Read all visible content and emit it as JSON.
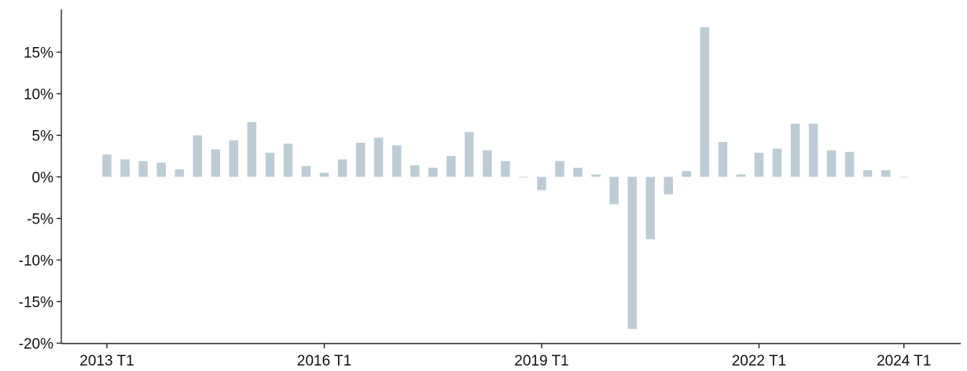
{
  "chart_data": {
    "type": "bar",
    "title": "",
    "xlabel": "",
    "ylabel": "",
    "y_unit": "%",
    "ylim": [
      -20,
      20
    ],
    "y_ticks": [
      -20,
      -15,
      -10,
      -5,
      0,
      5,
      10,
      15
    ],
    "y_tick_labels": [
      "-20%",
      "-15%",
      "-10%",
      "-5%",
      "0%",
      "5%",
      "10%",
      "15%"
    ],
    "x_tick_labels": [
      {
        "label": "2013 T1",
        "category": "2013 T1"
      },
      {
        "label": "2016 T1",
        "category": "2016 T1"
      },
      {
        "label": "2019 T1",
        "category": "2019 T1"
      },
      {
        "label": "2022 T1",
        "category": "2022 T1"
      },
      {
        "label": "2024 T1",
        "category": "2024 T1"
      }
    ],
    "bar_color": "#bdccd4",
    "grid": false,
    "legend": "none",
    "categories": [
      "2013 T1",
      "2013 T2",
      "2013 T3",
      "2013 T4",
      "2014 T1",
      "2014 T2",
      "2014 T3",
      "2014 T4",
      "2015 T1",
      "2015 T2",
      "2015 T3",
      "2015 T4",
      "2016 T1",
      "2016 T2",
      "2016 T3",
      "2016 T4",
      "2017 T1",
      "2017 T2",
      "2017 T3",
      "2017 T4",
      "2018 T1",
      "2018 T2",
      "2018 T3",
      "2018 T4",
      "2019 T1",
      "2019 T2",
      "2019 T3",
      "2019 T4",
      "2020 T1",
      "2020 T2",
      "2020 T3",
      "2020 T4",
      "2021 T1",
      "2021 T2",
      "2021 T3",
      "2021 T4",
      "2022 T1",
      "2022 T2",
      "2022 T3",
      "2022 T4",
      "2023 T1",
      "2023 T2",
      "2023 T3",
      "2023 T4",
      "2024 T1"
    ],
    "values": [
      2.7,
      2.1,
      1.9,
      1.7,
      0.9,
      5.0,
      3.3,
      4.4,
      6.6,
      2.9,
      4.0,
      1.3,
      0.5,
      2.1,
      4.1,
      4.7,
      3.8,
      1.4,
      1.1,
      2.5,
      5.4,
      3.2,
      1.9,
      0.0,
      -1.6,
      1.9,
      1.1,
      0.3,
      -3.3,
      -18.3,
      -7.5,
      -2.1,
      0.7,
      18.0,
      4.2,
      0.3,
      2.9,
      3.4,
      6.4,
      6.4,
      3.2,
      3.0,
      0.8,
      0.8,
      0.0
    ]
  }
}
